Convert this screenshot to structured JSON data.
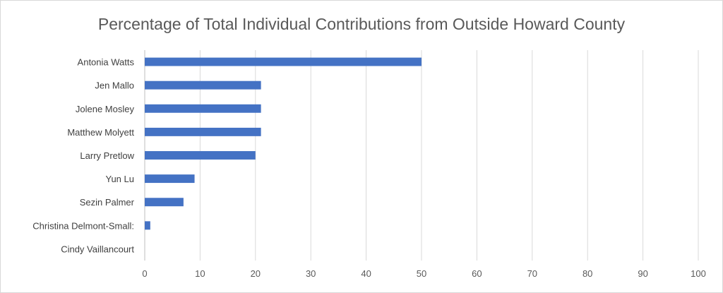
{
  "chart_data": {
    "type": "bar",
    "orientation": "horizontal",
    "title": "Percentage of Total Individual Contributions from Outside Howard County",
    "categories": [
      "Antonia Watts",
      "Jen Mallo",
      "Jolene Mosley",
      "Matthew Molyett",
      "Larry Pretlow",
      "Yun Lu",
      "Sezin Palmer",
      "Christina Delmont-Small:",
      "Cindy Vaillancourt"
    ],
    "values": [
      50,
      21,
      21,
      21,
      20,
      9,
      7,
      1,
      0
    ],
    "xlim": [
      0,
      100
    ],
    "xticks": [
      "0",
      "10",
      "20",
      "30",
      "40",
      "50",
      "60",
      "70",
      "80",
      "90",
      "100"
    ],
    "grid": "vertical",
    "legend": "none",
    "colors": {
      "bar": "#4472c4",
      "grid": "#d9d9d9",
      "axis": "#bfbfbf"
    }
  }
}
